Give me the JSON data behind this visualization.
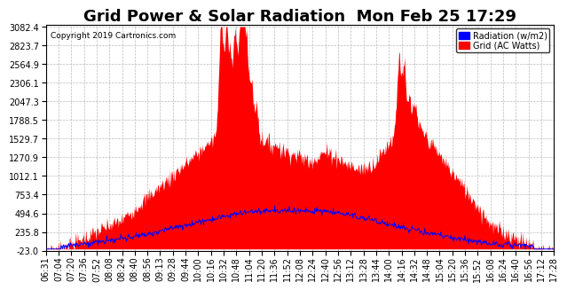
{
  "title": "Grid Power & Solar Radiation  Mon Feb 25 17:29",
  "copyright": "Copyright 2019 Cartronics.com",
  "legend_radiation": "Radiation (w/m2)",
  "legend_grid": "Grid (AC Watts)",
  "ymin": -23.0,
  "ymax": 3082.4,
  "yticks": [
    -23.0,
    235.8,
    494.6,
    753.4,
    1012.1,
    1270.9,
    1529.7,
    1788.5,
    2047.3,
    2306.1,
    2564.9,
    2823.7,
    3082.4
  ],
  "background_color": "#ffffff",
  "plot_bg_color": "#ffffff",
  "grid_color": "#bbbbbb",
  "red_color": "#ff0000",
  "blue_color": "#0000ff",
  "title_fontsize": 13,
  "tick_fontsize": 7,
  "x_tick_labels": [
    "06:31",
    "07:04",
    "07:20",
    "07:36",
    "07:52",
    "08:08",
    "08:24",
    "08:40",
    "08:56",
    "09:13",
    "09:28",
    "09:44",
    "10:00",
    "10:16",
    "10:32",
    "10:48",
    "11:04",
    "11:20",
    "11:36",
    "11:52",
    "12:08",
    "12:24",
    "12:40",
    "12:56",
    "13:12",
    "13:28",
    "13:44",
    "14:00",
    "14:16",
    "14:32",
    "14:48",
    "15:04",
    "15:20",
    "15:36",
    "15:52",
    "16:08",
    "16:24",
    "16:40",
    "16:56",
    "17:12",
    "17:28"
  ]
}
